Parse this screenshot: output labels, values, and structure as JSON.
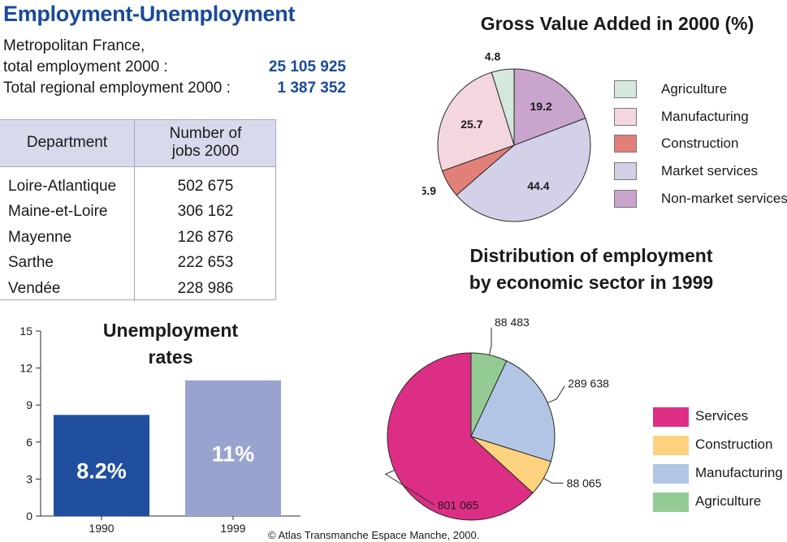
{
  "header": {
    "title": "Employment-Unemployment",
    "line1": "Metropolitan France,",
    "line2_label": "total employment 2000 :",
    "line2_value": "25 105 925",
    "line3_label": "Total regional employment 2000 :",
    "line3_value": "1 387 352"
  },
  "table": {
    "col1": "Department",
    "col2_line1": "Number of",
    "col2_line2": "jobs 2000",
    "rows": [
      {
        "dept": "Loire-Atlantique",
        "jobs": "502 675"
      },
      {
        "dept": "Maine-et-Loire",
        "jobs": "306 162"
      },
      {
        "dept": "Mayenne",
        "jobs": "126 876"
      },
      {
        "dept": "Sarthe",
        "jobs": "222 653"
      },
      {
        "dept": "Vendée",
        "jobs": "228 986"
      }
    ]
  },
  "credit": "© Atlas Transmanche Espace Manche, 2000.",
  "chart_data": [
    {
      "type": "pie",
      "title": "Gross Value Added in 2000 (%)",
      "slices": [
        {
          "label": "Agriculture",
          "value": 4.8,
          "value_label": "4.8",
          "color": "#d5e8de"
        },
        {
          "label": "Non-market services",
          "value": 19.2,
          "value_label": "19.2",
          "color": "#c9a4cc"
        },
        {
          "label": "Market services",
          "value": 44.4,
          "value_label": "44.4",
          "color": "#d2d1e8"
        },
        {
          "label": "Construction",
          "value": 5.9,
          "value_label": "5.9",
          "color": "#e08078"
        },
        {
          "label": "Manufacturing",
          "value": 25.7,
          "value_label": "25.7",
          "color": "#f4d6de"
        }
      ],
      "legend": [
        "Agriculture",
        "Manufacturing",
        "Construction",
        "Market services",
        "Non-market services"
      ],
      "legend_colors": [
        "#d5e8de",
        "#f4d6de",
        "#e08078",
        "#d2d1e8",
        "#c9a4cc"
      ],
      "legend_position": "right"
    },
    {
      "type": "pie",
      "title_line1": "Distribution of employment",
      "title_line2": "by economic sector in 1999",
      "slices": [
        {
          "label": "Agriculture",
          "value": 88483,
          "value_label": "88 483",
          "color": "#94cb94"
        },
        {
          "label": "Manufacturing",
          "value": 289638,
          "value_label": "289 638",
          "color": "#b3c5e4"
        },
        {
          "label": "Construction",
          "value": 88065,
          "value_label": "88 065",
          "color": "#fcd27e"
        },
        {
          "label": "Services",
          "value": 801065,
          "value_label": "801 065",
          "color": "#dd2e85"
        }
      ],
      "legend": [
        "Services",
        "Construction",
        "Manufacturing",
        "Agriculture"
      ],
      "legend_colors": [
        "#dd2e85",
        "#fcd27e",
        "#b3c5e4",
        "#94cb94"
      ],
      "legend_position": "right"
    },
    {
      "type": "bar",
      "title_line1": "Unemployment",
      "title_line2": "rates",
      "categories": [
        "1990",
        "1999"
      ],
      "values": [
        8.2,
        11
      ],
      "value_labels": [
        "8.2%",
        "11%"
      ],
      "colors": [
        "#1f4f9e",
        "#99a3d0"
      ],
      "ylim": [
        0,
        15
      ],
      "yticks": [
        0,
        3,
        6,
        9,
        12,
        15
      ],
      "grid": false
    }
  ]
}
